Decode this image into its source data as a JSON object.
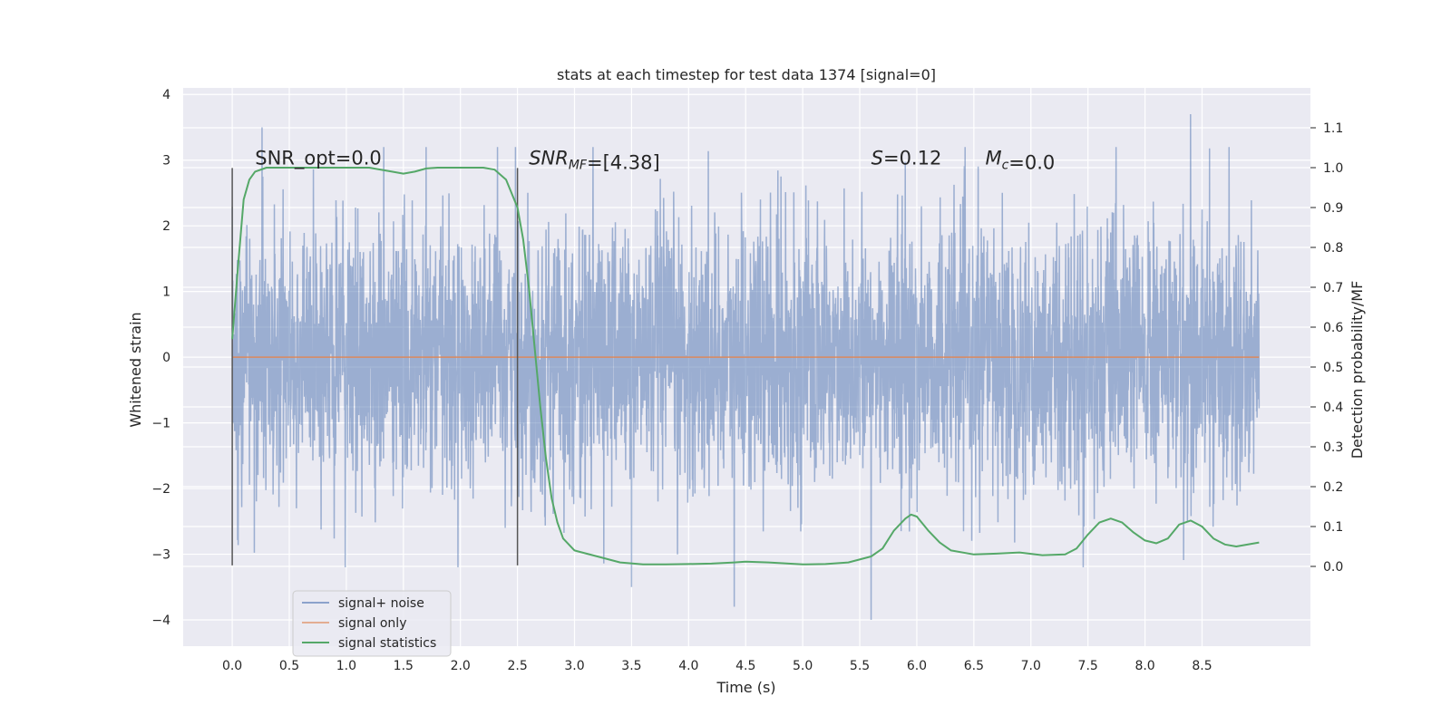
{
  "chart_data": {
    "type": "line",
    "title": "stats at each timestep for test data 1374 [signal=0]",
    "xlabel": "Time (s)",
    "ylabel_left": "Whitened strain",
    "ylabel_right": "Detection probability/MF",
    "xlim": [
      -0.43,
      9.45
    ],
    "ylim_left": [
      -4.4,
      4.1
    ],
    "ylim_right": [
      -0.2,
      1.2
    ],
    "x_ticks": [
      "0.0",
      "0.5",
      "1.0",
      "1.5",
      "2.0",
      "2.5",
      "3.0",
      "3.5",
      "4.0",
      "4.5",
      "5.0",
      "5.5",
      "6.0",
      "6.5",
      "7.0",
      "7.5",
      "8.0",
      "8.5"
    ],
    "y_ticks_left": [
      "−4",
      "−3",
      "−2",
      "−1",
      "0",
      "1",
      "2",
      "3",
      "4"
    ],
    "y_ticks_right": [
      "0.0",
      "0.1",
      "0.2",
      "0.3",
      "0.4",
      "0.5",
      "0.6",
      "0.7",
      "0.8",
      "0.9",
      "1.0",
      "1.1"
    ],
    "grid": true,
    "legend_position": "lower-left",
    "series": [
      {
        "name": "signal+ noise",
        "color": "#4c72b0",
        "axis": "left",
        "description_values": "white noise, approx. std 1, spanning t=0.0 to 9.0 s, extremes about -4.0 to 3.7",
        "x_range": [
          0.0,
          9.0
        ],
        "typical_amplitude": 1.0,
        "peak_values": [
          [
            0.26,
            3.5
          ],
          [
            1.7,
            3.2
          ],
          [
            5.6,
            -4.0
          ],
          [
            4.4,
            -3.8
          ],
          [
            8.4,
            3.7
          ],
          [
            3.5,
            -3.5
          ]
        ]
      },
      {
        "name": "signal only",
        "color": "#dd8452",
        "axis": "left",
        "x": [
          0.0,
          9.0
        ],
        "y": [
          0.0,
          0.0
        ]
      },
      {
        "name": "signal statistics",
        "color": "#55a868",
        "axis": "right",
        "x": [
          0.0,
          0.05,
          0.1,
          0.15,
          0.2,
          0.3,
          0.5,
          0.8,
          1.0,
          1.2,
          1.4,
          1.5,
          1.6,
          1.7,
          1.8,
          2.0,
          2.2,
          2.3,
          2.4,
          2.5,
          2.55,
          2.6,
          2.65,
          2.7,
          2.75,
          2.8,
          2.85,
          2.9,
          3.0,
          3.2,
          3.4,
          3.6,
          3.8,
          4.0,
          4.2,
          4.4,
          4.5,
          4.7,
          5.0,
          5.2,
          5.4,
          5.6,
          5.7,
          5.8,
          5.9,
          5.95,
          6.0,
          6.1,
          6.2,
          6.3,
          6.5,
          6.7,
          6.9,
          7.1,
          7.3,
          7.4,
          7.5,
          7.6,
          7.7,
          7.8,
          7.9,
          8.0,
          8.1,
          8.2,
          8.3,
          8.4,
          8.5,
          8.6,
          8.7,
          8.8,
          9.0
        ],
        "y": [
          0.57,
          0.75,
          0.92,
          0.97,
          0.99,
          1.0,
          1.0,
          1.0,
          1.0,
          1.0,
          0.99,
          0.985,
          0.99,
          0.998,
          1.0,
          1.0,
          1.0,
          0.995,
          0.97,
          0.9,
          0.82,
          0.7,
          0.55,
          0.4,
          0.27,
          0.17,
          0.11,
          0.07,
          0.04,
          0.025,
          0.01,
          0.005,
          0.005,
          0.006,
          0.007,
          0.01,
          0.012,
          0.01,
          0.005,
          0.006,
          0.01,
          0.025,
          0.045,
          0.09,
          0.12,
          0.13,
          0.125,
          0.09,
          0.06,
          0.04,
          0.03,
          0.032,
          0.035,
          0.028,
          0.03,
          0.045,
          0.08,
          0.11,
          0.12,
          0.11,
          0.085,
          0.065,
          0.058,
          0.07,
          0.105,
          0.115,
          0.1,
          0.07,
          0.055,
          0.05,
          0.06
        ]
      }
    ],
    "vlines": [
      {
        "x": 0.0,
        "y_from": -3.17,
        "y_to": 2.88,
        "color": "#555555"
      },
      {
        "x": 2.5,
        "y_from": -3.17,
        "y_to": 2.88,
        "color": "#555555"
      }
    ],
    "annotations": [
      {
        "x": 0.2,
        "y": 3.0,
        "text_parts": [
          {
            "t": "SNR_opt=0.0",
            "italic": false
          }
        ]
      },
      {
        "x": 2.6,
        "y": 3.0,
        "text_parts": [
          {
            "t": "SNR",
            "italic": true
          },
          {
            "t": "MF",
            "italic": true,
            "sub": true
          },
          {
            "t": "=[4.38]",
            "italic": false
          }
        ]
      },
      {
        "x": 5.6,
        "y": 3.0,
        "text_parts": [
          {
            "t": "S",
            "italic": true
          },
          {
            "t": "=0.12",
            "italic": false
          }
        ]
      },
      {
        "x": 6.6,
        "y": 3.0,
        "text_parts": [
          {
            "t": "M",
            "italic": true
          },
          {
            "t": "c",
            "italic": true,
            "sub": true
          },
          {
            "t": "=0.0",
            "italic": false
          }
        ]
      }
    ]
  },
  "colors": {
    "plot_background": "#eaeaf2",
    "grid": "#ffffff"
  }
}
